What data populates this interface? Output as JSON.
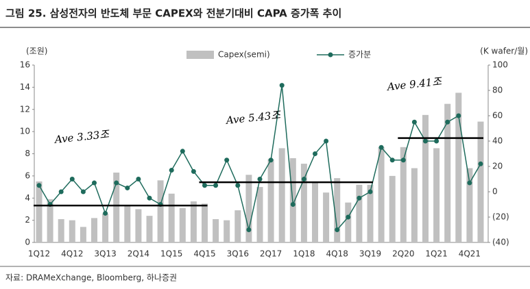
{
  "chart_data": {
    "type": "bar_line",
    "title": "그림 25. 삼성전자의 반도체 부문 CAPEX와 전분기대비 CAPA 증가폭 추이",
    "y_label": "(조원)",
    "y2_label": "(K wafer/월)",
    "source": "자료: DRAMeXchange, Bloomberg, 하나증권",
    "categories": [
      "1Q12",
      null,
      null,
      "4Q12",
      null,
      null,
      "3Q13",
      null,
      null,
      "2Q14",
      null,
      null,
      "1Q15",
      null,
      null,
      "4Q15",
      null,
      null,
      "3Q16",
      null,
      null,
      "2Q17",
      null,
      null,
      "1Q18",
      null,
      null,
      "4Q18",
      null,
      null,
      "3Q19",
      null,
      null,
      "2Q20",
      null,
      null,
      "1Q21",
      null,
      null,
      "4Q21",
      null
    ],
    "series": [
      {
        "name": "Capex(semi)",
        "type": "bar",
        "color": "#c0c0c0",
        "values": [
          5.5,
          3.9,
          2.1,
          2.0,
          1.4,
          2.2,
          2.6,
          6.3,
          3.3,
          3.0,
          2.4,
          5.6,
          4.4,
          3.1,
          3.7,
          3.5,
          2.1,
          2.0,
          2.9,
          6.1,
          5.0,
          7.5,
          8.5,
          7.6,
          7.1,
          5.4,
          4.5,
          5.8,
          3.6,
          5.2,
          5.2,
          8.6,
          6.0,
          8.6,
          6.7,
          11.5,
          8.5,
          12.5,
          13.5,
          6.7,
          10.9
        ]
      },
      {
        "name": "증가분",
        "type": "line",
        "axis": "y2",
        "color": "#1e6b5c",
        "values": [
          5,
          -10,
          0,
          10,
          0,
          7,
          -17,
          7,
          3,
          10,
          -5,
          -10,
          17,
          32,
          16,
          5,
          5,
          25,
          5,
          -30,
          10,
          25,
          84,
          -10,
          10,
          30,
          40,
          -30,
          -20,
          -5,
          0,
          35,
          25,
          25,
          55,
          40,
          40,
          55,
          60,
          7,
          22
        ]
      }
    ],
    "averages": [
      {
        "label": "Ave 3.33조",
        "value": 3.33,
        "start": "1Q12",
        "end": "4Q15"
      },
      {
        "label": "Ave 5.43조",
        "value": 5.43,
        "start": "4Q15",
        "end": "3Q19"
      },
      {
        "label": "Ave 9.41조",
        "value": 9.41,
        "start": "2Q20",
        "end": "4Q21"
      }
    ],
    "ylim": [
      0,
      16
    ],
    "yticks": [
      0,
      2,
      4,
      6,
      8,
      10,
      12,
      14,
      16
    ],
    "y2lim": [
      -40,
      100
    ],
    "y2ticks": [
      {
        "value": -40,
        "label": "(40)"
      },
      {
        "value": -20,
        "label": "(20)"
      },
      0,
      20,
      40,
      60,
      80,
      100
    ],
    "grid": false
  }
}
